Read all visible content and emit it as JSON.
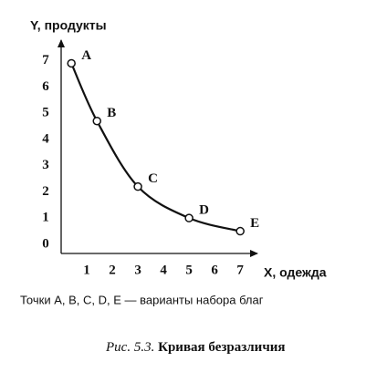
{
  "chart_data": {
    "type": "line",
    "y_label": "Y, продукты",
    "x_label": "X, одежда",
    "x": [
      0.4,
      1.4,
      3,
      5,
      7
    ],
    "values": [
      6.9,
      4.7,
      2.2,
      1.0,
      0.5
    ],
    "point_labels": [
      "A",
      "B",
      "C",
      "D",
      "E"
    ],
    "color": "#111111",
    "xlim": [
      0,
      7.6
    ],
    "ylim": [
      -0.35,
      7.75
    ],
    "xticks": [
      1,
      2,
      3,
      4,
      5,
      6,
      7
    ],
    "yticks": [
      0,
      1,
      2,
      3,
      4,
      5,
      6,
      7
    ],
    "note": "Точки A, B, C, D, E — варианты набора благ",
    "figure_number": "Рис. 5.3.",
    "caption": "Кривая безразличия"
  }
}
